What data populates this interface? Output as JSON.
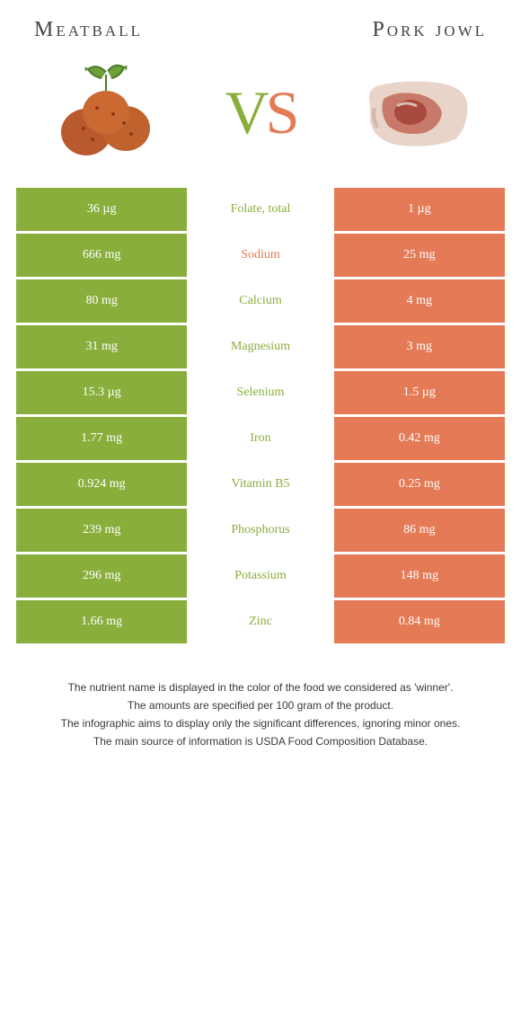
{
  "header": {
    "left_title": "Meatball",
    "right_title": "Pork jowl"
  },
  "vs": {
    "v": "V",
    "s": "S"
  },
  "colors": {
    "left": "#8aae3c",
    "right": "#e57a56",
    "background": "#ffffff",
    "text": "#333333",
    "footer_text": "#393939"
  },
  "rows": [
    {
      "left": "36 µg",
      "mid": "Folate, total",
      "winner": "left",
      "right": "1 µg"
    },
    {
      "left": "666 mg",
      "mid": "Sodium",
      "winner": "right",
      "right": "25 mg"
    },
    {
      "left": "80 mg",
      "mid": "Calcium",
      "winner": "left",
      "right": "4 mg"
    },
    {
      "left": "31 mg",
      "mid": "Magnesium",
      "winner": "left",
      "right": "3 mg"
    },
    {
      "left": "15.3 µg",
      "mid": "Selenium",
      "winner": "left",
      "right": "1.5 µg"
    },
    {
      "left": "1.77 mg",
      "mid": "Iron",
      "winner": "left",
      "right": "0.42 mg"
    },
    {
      "left": "0.924 mg",
      "mid": "Vitamin B5",
      "winner": "left",
      "right": "0.25 mg"
    },
    {
      "left": "239 mg",
      "mid": "Phosphorus",
      "winner": "left",
      "right": "86 mg"
    },
    {
      "left": "296 mg",
      "mid": "Potassium",
      "winner": "left",
      "right": "148 mg"
    },
    {
      "left": "1.66 mg",
      "mid": "Zinc",
      "winner": "left",
      "right": "0.84 mg"
    }
  ],
  "footer": {
    "line1": "The nutrient name is displayed in the color of the food we considered as 'winner'.",
    "line2": "The amounts are specified per 100 gram of the product.",
    "line3": "The infographic aims to display only the significant differences, ignoring minor ones.",
    "line4": "The main source of information is USDA Food Composition Database."
  },
  "typography": {
    "title_fontsize": 24,
    "vs_fontsize": 68,
    "cell_fontsize": 14,
    "footer_fontsize": 12
  }
}
